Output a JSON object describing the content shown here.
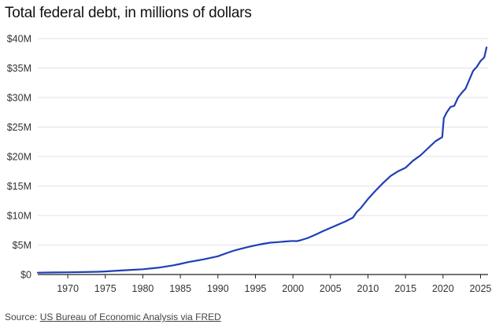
{
  "chart_data": {
    "type": "line",
    "title": "Total federal debt, in millions of dollars",
    "xlabel": "",
    "ylabel": "",
    "xlim": [
      1966,
      2026
    ],
    "ylim": [
      0,
      40000000
    ],
    "grid": true,
    "x_ticks": [
      {
        "value": 1970,
        "label": "1970"
      },
      {
        "value": 1975,
        "label": "1975"
      },
      {
        "value": 1980,
        "label": "1980"
      },
      {
        "value": 1985,
        "label": "1985"
      },
      {
        "value": 1990,
        "label": "1990"
      },
      {
        "value": 1995,
        "label": "1995"
      },
      {
        "value": 2000,
        "label": "2000"
      },
      {
        "value": 2005,
        "label": "2005"
      },
      {
        "value": 2010,
        "label": "2010"
      },
      {
        "value": 2015,
        "label": "2015"
      },
      {
        "value": 2020,
        "label": "2020"
      },
      {
        "value": 2025,
        "label": "2025"
      }
    ],
    "y_ticks": [
      {
        "value": 0,
        "label": "$0"
      },
      {
        "value": 5000000,
        "label": "$5M"
      },
      {
        "value": 10000000,
        "label": "$10M"
      },
      {
        "value": 15000000,
        "label": "$15M"
      },
      {
        "value": 20000000,
        "label": "$20M"
      },
      {
        "value": 25000000,
        "label": "$25M"
      },
      {
        "value": 30000000,
        "label": "$30M"
      },
      {
        "value": 35000000,
        "label": "$35M"
      },
      {
        "value": 40000000,
        "label": "$40M"
      }
    ],
    "series": [
      {
        "name": "Total federal debt",
        "color": "#1f3fb5",
        "x": [
          1966,
          1968,
          1970,
          1972,
          1974,
          1975,
          1976,
          1978,
          1980,
          1982,
          1983,
          1984,
          1985,
          1986,
          1988,
          1990,
          1991,
          1992,
          1993,
          1994,
          1995,
          1996,
          1997,
          1998,
          1999,
          2000,
          2000.5,
          2001,
          2002,
          2003,
          2004,
          2005,
          2006,
          2007,
          2008,
          2008.5,
          2009,
          2010,
          2011,
          2012,
          2013,
          2014,
          2015,
          2016,
          2017,
          2018,
          2019,
          2019.9,
          2020.1,
          2020.5,
          2021,
          2021.5,
          2022,
          2022.5,
          2023,
          2023.5,
          2024,
          2024.5,
          2025,
          2025.5,
          2025.8
        ],
        "values": [
          310000,
          340000,
          370000,
          420000,
          470000,
          520000,
          600000,
          750000,
          900000,
          1150000,
          1350000,
          1550000,
          1800000,
          2100000,
          2550000,
          3100000,
          3550000,
          4000000,
          4350000,
          4650000,
          4950000,
          5200000,
          5400000,
          5500000,
          5600000,
          5700000,
          5650000,
          5800000,
          6200000,
          6750000,
          7350000,
          7900000,
          8450000,
          9000000,
          9650000,
          10600000,
          11200000,
          12800000,
          14200000,
          15500000,
          16700000,
          17500000,
          18100000,
          19300000,
          20200000,
          21400000,
          22600000,
          23300000,
          26500000,
          27500000,
          28400000,
          28600000,
          30000000,
          30800000,
          31500000,
          33000000,
          34500000,
          35200000,
          36200000,
          36800000,
          38500000
        ]
      }
    ]
  },
  "source": {
    "prefix": "Source: ",
    "link_text": "US Bureau of Economic Analysis via FRED"
  }
}
